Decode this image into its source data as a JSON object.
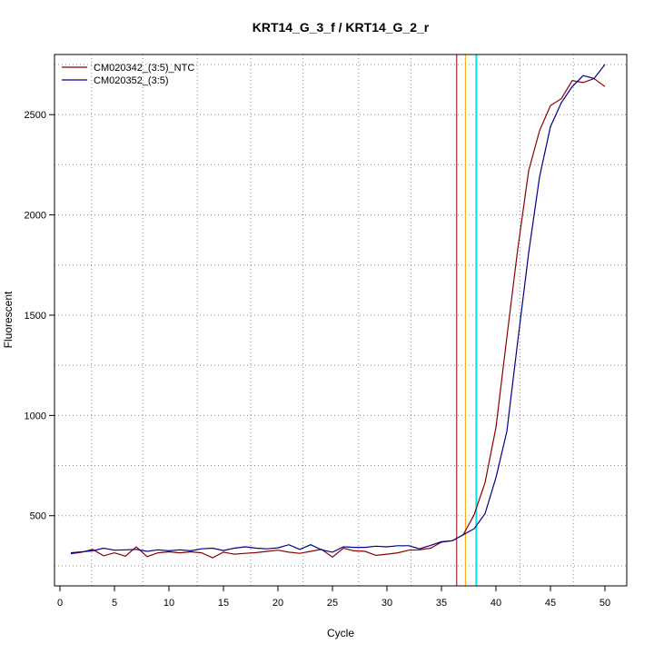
{
  "chart_data": {
    "type": "line",
    "title": "KRT14_G_3_f / KRT14_G_2_r",
    "xlabel": "Cycle",
    "ylabel": "Fluorescent",
    "xlim": [
      -0.5,
      52
    ],
    "ylim": [
      150,
      2800
    ],
    "x_ticks": [
      0,
      5,
      10,
      15,
      20,
      25,
      30,
      35,
      40,
      45,
      50
    ],
    "y_ticks": [
      500,
      1000,
      1500,
      2000,
      2500
    ],
    "grid": "dotted",
    "legend_position": "top-left",
    "series": [
      {
        "name": "CM020342_(3:5)_NTC",
        "color": "#8b0000",
        "x": [
          1,
          2,
          3,
          4,
          5,
          6,
          7,
          8,
          9,
          10,
          11,
          12,
          13,
          14,
          15,
          16,
          17,
          18,
          19,
          20,
          21,
          22,
          23,
          24,
          25,
          26,
          27,
          28,
          29,
          30,
          31,
          32,
          33,
          34,
          35,
          36,
          37,
          38,
          39,
          40,
          41,
          42,
          43,
          44,
          45,
          46,
          47,
          48,
          49,
          50
        ],
        "values": [
          310,
          318,
          332,
          300,
          315,
          298,
          345,
          296,
          315,
          320,
          315,
          320,
          315,
          290,
          318,
          308,
          312,
          316,
          322,
          328,
          318,
          312,
          322,
          332,
          293,
          338,
          325,
          322,
          302,
          308,
          315,
          328,
          330,
          338,
          368,
          375,
          405,
          505,
          665,
          940,
          1390,
          1830,
          2220,
          2420,
          2545,
          2580,
          2670,
          2660,
          2680,
          2640
        ]
      },
      {
        "name": "CM020352_(3:5)",
        "color": "#00008b",
        "x": [
          1,
          2,
          3,
          4,
          5,
          6,
          7,
          8,
          9,
          10,
          11,
          12,
          13,
          14,
          15,
          16,
          17,
          18,
          19,
          20,
          21,
          22,
          23,
          24,
          25,
          26,
          27,
          28,
          29,
          30,
          31,
          32,
          33,
          34,
          35,
          36,
          37,
          38,
          39,
          40,
          41,
          42,
          43,
          44,
          45,
          46,
          47,
          48,
          49,
          50
        ],
        "values": [
          315,
          320,
          325,
          338,
          328,
          330,
          332,
          322,
          330,
          325,
          330,
          325,
          335,
          338,
          326,
          338,
          345,
          338,
          335,
          340,
          355,
          332,
          355,
          330,
          318,
          345,
          342,
          342,
          348,
          345,
          350,
          350,
          335,
          352,
          370,
          375,
          405,
          435,
          510,
          690,
          920,
          1370,
          1810,
          2190,
          2440,
          2560,
          2640,
          2695,
          2680,
          2750
        ]
      }
    ],
    "vlines": [
      {
        "x": 36.4,
        "color": "#8b0000"
      },
      {
        "x": 37.2,
        "color": "#ffa500"
      },
      {
        "x": 38.2,
        "color": "#00e5ee"
      }
    ]
  }
}
